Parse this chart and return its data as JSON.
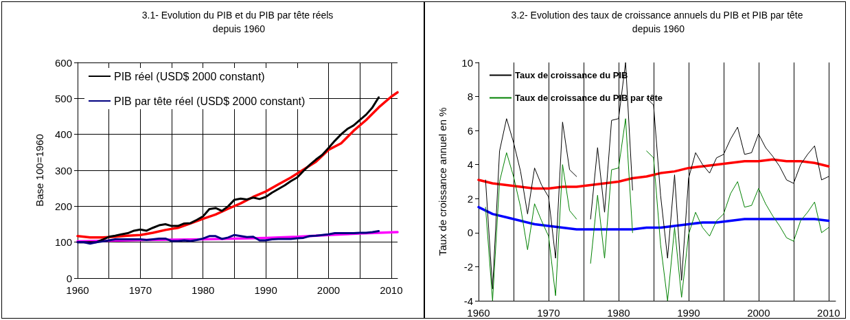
{
  "chart_data": [
    {
      "type": "line",
      "title": "3.1- Evolution du PIB et du PIB par tête réels depuis 1960",
      "ylabel": "Base 100=1960",
      "xlim": [
        1960,
        2011
      ],
      "ylim": [
        0,
        600
      ],
      "xticks": [
        1960,
        {
          "value": 1965,
          "label": null
        },
        1970,
        {
          "value": 1975,
          "label": null
        },
        1980,
        {
          "value": 1985,
          "label": null
        },
        1990,
        {
          "value": 1995,
          "label": null
        },
        2000,
        {
          "value": 2005,
          "label": null
        },
        2010
      ],
      "yticks": [
        0,
        100,
        200,
        300,
        400,
        500,
        600
      ],
      "grid": true,
      "legend": "top left",
      "marker": "none",
      "line_style": "solid",
      "x": [
        1960,
        1961,
        1962,
        1963,
        1964,
        1965,
        1966,
        1967,
        1968,
        1969,
        1970,
        1971,
        1972,
        1973,
        1974,
        1975,
        1976,
        1977,
        1978,
        1979,
        1980,
        1981,
        1982,
        1983,
        1984,
        1985,
        1986,
        1987,
        1988,
        1989,
        1990,
        1991,
        1992,
        1993,
        1994,
        1995,
        1996,
        1997,
        1998,
        1999,
        2000,
        2001,
        2002,
        2003,
        2004,
        2005,
        2006,
        2007,
        2008
      ],
      "series": [
        {
          "name": "PIB réel (USD$ 2000 constant)",
          "color": "#000000",
          "values": [
            100,
            100,
            100,
            100,
            107,
            115,
            118,
            122,
            125,
            132,
            135,
            132,
            140,
            147,
            150,
            145,
            145,
            152,
            153,
            162,
            172,
            192,
            195,
            187,
            200,
            218,
            221,
            219,
            224,
            220,
            226,
            238,
            248,
            258,
            270,
            280,
            298,
            315,
            330,
            343,
            362,
            382,
            400,
            415,
            425,
            440,
            455,
            475,
            503
          ]
        },
        {
          "name": "PIB par tête réel (USD$ 2000 constant)",
          "color": "#000080",
          "values": [
            100,
            100,
            96,
            100,
            102,
            105,
            108,
            108,
            108,
            108,
            108,
            106,
            108,
            110,
            110,
            103,
            103,
            105,
            103,
            106,
            110,
            117,
            117,
            109,
            113,
            120,
            117,
            114,
            115,
            105,
            105,
            108,
            109,
            109,
            109,
            111,
            112,
            117,
            118,
            120,
            122,
            125,
            125,
            125,
            125,
            126,
            126,
            128,
            131
          ]
        },
        {
          "color": "#ff0000",
          "x": [
            1960,
            1962,
            1964,
            1966,
            1968,
            1970,
            1972,
            1974,
            1976,
            1978,
            1980,
            1982,
            1984,
            1986,
            1988,
            1990,
            1992,
            1994,
            1996,
            1998,
            2000,
            2002,
            2004,
            2006,
            2008,
            2010,
            2011
          ],
          "values": [
            117,
            113,
            113,
            115,
            118,
            120,
            126,
            134,
            140,
            152,
            165,
            177,
            193,
            208,
            226,
            241,
            261,
            280,
            302,
            324,
            357,
            375,
            410,
            440,
            475,
            505,
            517
          ]
        },
        {
          "color": "#ff00ff",
          "x": [
            1960,
            1965,
            1970,
            1975,
            1980,
            1985,
            1990,
            1995,
            2000,
            2005,
            2011
          ],
          "values": [
            102,
            104,
            106,
            107,
            108,
            110,
            112,
            115,
            120,
            124,
            128
          ]
        }
      ]
    },
    {
      "type": "line",
      "title": "3.2- Evolution des taux de croissance annuels du PIB et PIB par tête depuis 1960",
      "ylabel": "Taux de croissance annuel en %",
      "xlim": [
        1960,
        2011
      ],
      "ylim": [
        -4,
        10
      ],
      "xticks": [
        1960,
        {
          "value": 1965,
          "label": null
        },
        1970,
        {
          "value": 1975,
          "label": null
        },
        1980,
        {
          "value": 1985,
          "label": null
        },
        1990,
        {
          "value": 1995,
          "label": null
        },
        2000,
        {
          "value": 2005,
          "label": null
        },
        2010
      ],
      "yticks": [
        -4,
        -2,
        0,
        2,
        4,
        6,
        8,
        10
      ],
      "grid": "x",
      "legend": "top left",
      "marker": "none",
      "line_style": "solid",
      "x": [
        1961,
        1962,
        1963,
        1964,
        1965,
        1966,
        1967,
        1968,
        1969,
        1970,
        1971,
        1972,
        1973,
        1974,
        1975,
        1976,
        1977,
        1978,
        1979,
        1980,
        1981,
        1982,
        1983,
        1984,
        1985,
        1986,
        1987,
        1988,
        1989,
        1990,
        1991,
        1992,
        1993,
        1994,
        1995,
        1996,
        1997,
        1998,
        1999,
        2000,
        2001,
        2002,
        2003,
        2004,
        2005,
        2006,
        2007,
        2008,
        2009,
        2010
      ],
      "series": [
        {
          "name": "Taux de croissance du PIB",
          "color": "#000000",
          "values": [
            3.1,
            -3.3,
            4.8,
            6.7,
            5.3,
            3.6,
            1.1,
            3.8,
            2.8,
            2.1,
            -1.5,
            6.5,
            3.7,
            3.3,
            null,
            0.8,
            5.0,
            1.2,
            6.6,
            6.7,
            10.0,
            2.5,
            null,
            7.9,
            7.5,
            2.2,
            -1.5,
            3.4,
            -2.8,
            3.2,
            4.7,
            4.0,
            3.5,
            4.4,
            4.6,
            5.5,
            6.2,
            4.6,
            4.7,
            5.8,
            5.0,
            4.5,
            3.9,
            3.1,
            2.9,
            4.0,
            4.6,
            5.1,
            3.1,
            3.3
          ]
        },
        {
          "name": "Taux de croissance du PIB par tête",
          "color": "#008000",
          "values": [
            1.5,
            -4.0,
            3.0,
            4.7,
            3.3,
            1.5,
            -1.0,
            1.7,
            0.7,
            -0.2,
            -3.7,
            4.0,
            1.3,
            0.8,
            null,
            -1.8,
            2.2,
            -1.5,
            3.7,
            3.8,
            6.7,
            0.0,
            null,
            4.8,
            4.4,
            -0.7,
            -4.0,
            0.3,
            -3.8,
            -0.1,
            1.2,
            0.3,
            -0.2,
            0.7,
            1.1,
            2.3,
            3.0,
            1.5,
            1.6,
            2.6,
            1.7,
            1.0,
            0.4,
            -0.3,
            -0.5,
            0.7,
            1.2,
            1.8,
            0.0,
            0.3
          ]
        },
        {
          "color": "#ff0000",
          "x": [
            1960,
            1962,
            1964,
            1966,
            1968,
            1970,
            1972,
            1974,
            1976,
            1978,
            1980,
            1982,
            1984,
            1986,
            1988,
            1990,
            1992,
            1994,
            1996,
            1998,
            2000,
            2002,
            2004,
            2006,
            2008,
            2010
          ],
          "values": [
            3.1,
            2.9,
            2.8,
            2.7,
            2.6,
            2.6,
            2.7,
            2.7,
            2.8,
            2.9,
            3.0,
            3.2,
            3.3,
            3.5,
            3.6,
            3.8,
            3.9,
            4.0,
            4.1,
            4.2,
            4.2,
            4.3,
            4.2,
            4.2,
            4.1,
            3.9
          ]
        },
        {
          "color": "#0000ff",
          "x": [
            1960,
            1962,
            1964,
            1966,
            1968,
            1970,
            1972,
            1974,
            1976,
            1978,
            1980,
            1982,
            1984,
            1986,
            1988,
            1990,
            1992,
            1994,
            1996,
            1998,
            2000,
            2002,
            2004,
            2006,
            2008,
            2010
          ],
          "values": [
            1.5,
            1.1,
            0.9,
            0.7,
            0.5,
            0.4,
            0.3,
            0.2,
            0.2,
            0.2,
            0.2,
            0.2,
            0.3,
            0.3,
            0.4,
            0.5,
            0.6,
            0.6,
            0.7,
            0.8,
            0.8,
            0.8,
            0.8,
            0.8,
            0.8,
            0.7
          ]
        }
      ]
    }
  ]
}
